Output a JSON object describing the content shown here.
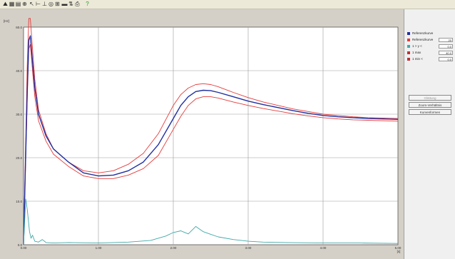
{
  "toolbar": {
    "icons": [
      {
        "name": "chart-icon",
        "glyph": "⛰"
      },
      {
        "name": "grid-icon",
        "glyph": "▦"
      },
      {
        "name": "table-icon",
        "glyph": "▤"
      },
      {
        "name": "zoom-icon",
        "glyph": "⊕"
      },
      {
        "name": "cursor-icon",
        "glyph": "↖"
      },
      {
        "name": "axis-x-icon",
        "glyph": "⊢"
      },
      {
        "name": "axis-y-icon",
        "glyph": "⊥"
      },
      {
        "name": "marker-icon",
        "glyph": "◎"
      },
      {
        "name": "scale-icon",
        "glyph": "⊞"
      },
      {
        "name": "save-icon",
        "glyph": "▬"
      },
      {
        "name": "export-icon",
        "glyph": "⇅"
      },
      {
        "name": "print-icon",
        "glyph": "⎙"
      },
      {
        "name": "help-icon",
        "glyph": "?"
      }
    ]
  },
  "chart_data": {
    "type": "line",
    "unit_label": "[Hz]",
    "yticks": [
      "60.0",
      "40.0",
      "30.0",
      "20.0",
      "10.0",
      "0.0"
    ],
    "xticks": [
      "0.00",
      "1.00",
      "2.00",
      "3.00",
      "4.00",
      "5.00"
    ],
    "x_unit": "[s]",
    "xlim": [
      0,
      5
    ],
    "ylim": [
      0,
      50
    ],
    "grid": true,
    "series": [
      {
        "color": "#1f2fa0",
        "width": 1.4,
        "x": [
          0,
          0.05,
          0.07,
          0.09,
          0.12,
          0.15,
          0.2,
          0.3,
          0.4,
          0.6,
          0.8,
          1.0,
          1.2,
          1.4,
          1.6,
          1.8,
          2.0,
          2.1,
          2.2,
          2.3,
          2.4,
          2.5,
          2.6,
          2.8,
          3.0,
          3.2,
          3.4,
          3.6,
          3.8,
          4.0,
          4.2,
          4.4,
          4.6,
          4.8,
          5.0
        ],
        "y": [
          0,
          36,
          47,
          48,
          42,
          36,
          30,
          25,
          22,
          19,
          16.5,
          15.8,
          16,
          17,
          19,
          23,
          29,
          32,
          34,
          35.2,
          35.5,
          35.4,
          35,
          34,
          33,
          32.2,
          31.5,
          30.8,
          30.2,
          29.7,
          29.4,
          29.2,
          29.0,
          28.9,
          28.8
        ]
      },
      {
        "color": "#e53a3a",
        "width": 0.9,
        "x": [
          0,
          0.05,
          0.07,
          0.09,
          0.12,
          0.15,
          0.2,
          0.3,
          0.4,
          0.6,
          0.8,
          1.0,
          1.2,
          1.4,
          1.6,
          1.8,
          2.0,
          2.1,
          2.2,
          2.3,
          2.4,
          2.5,
          2.6,
          2.8,
          3.0,
          3.2,
          3.4,
          3.6,
          3.8,
          4.0,
          4.2,
          4.4,
          4.6,
          4.8,
          5.0
        ],
        "y": [
          0,
          42,
          52,
          52,
          45,
          38,
          31,
          25.5,
          22,
          19,
          17,
          16.5,
          17,
          18.5,
          21,
          25.5,
          32,
          34.5,
          36,
          36.8,
          37,
          36.8,
          36.3,
          35,
          33.8,
          32.8,
          32,
          31.2,
          30.6,
          30.0,
          29.7,
          29.4,
          29.2,
          29.1,
          29.0
        ]
      },
      {
        "color": "#e53a3a",
        "width": 0.9,
        "x": [
          0,
          0.05,
          0.07,
          0.09,
          0.12,
          0.15,
          0.2,
          0.3,
          0.4,
          0.6,
          0.8,
          1.0,
          1.2,
          1.4,
          1.6,
          1.8,
          2.0,
          2.1,
          2.2,
          2.3,
          2.4,
          2.5,
          2.6,
          2.8,
          3.0,
          3.2,
          3.4,
          3.6,
          3.8,
          4.0,
          4.2,
          4.4,
          4.6,
          4.8,
          5.0
        ],
        "y": [
          0,
          34,
          45,
          46,
          40,
          34,
          28.5,
          23.8,
          20.8,
          18,
          15.8,
          15.2,
          15.2,
          16,
          17.5,
          20.5,
          26.5,
          29.5,
          32,
          33.5,
          34,
          34,
          33.7,
          32.8,
          32,
          31.3,
          30.7,
          30.1,
          29.6,
          29.2,
          28.9,
          28.7,
          28.6,
          28.5,
          28.4
        ]
      },
      {
        "color": "#40a8a8",
        "width": 0.9,
        "x": [
          0,
          0.03,
          0.05,
          0.08,
          0.1,
          0.12,
          0.15,
          0.2,
          0.25,
          0.3,
          0.4,
          0.6,
          1.0,
          1.4,
          1.7,
          1.9,
          2.0,
          2.1,
          2.2,
          2.3,
          2.4,
          2.5,
          2.6,
          2.8,
          3.0,
          3.2,
          3.5,
          4.0,
          4.5,
          5.0
        ],
        "y": [
          0,
          10.5,
          8,
          3,
          1.5,
          2.2,
          0.8,
          0.6,
          1.2,
          0.5,
          0.4,
          0.5,
          0.4,
          0.6,
          1.0,
          2.0,
          2.8,
          3.2,
          2.5,
          4.2,
          3.0,
          2.4,
          1.8,
          1.2,
          0.8,
          0.6,
          0.5,
          0.4,
          0.4,
          0.3
        ]
      }
    ]
  },
  "panel": {
    "legend": [
      {
        "color": "#1f2fa0",
        "label": "Referenzkurve",
        "value": ""
      },
      {
        "color": "#e53a3a",
        "label": "Referenzkurve",
        "value": "20"
      },
      {
        "color": "#40a8a8",
        "label": "1 > y <",
        "value": "0.0"
      },
      {
        "color": "#c03030",
        "label": "1 max",
        "value": "40.0"
      },
      {
        "color": "#c03030",
        "label": "1 min <",
        "value": "0.0"
      }
    ],
    "buttons": [
      {
        "label": "Glättung",
        "disabled": true
      },
      {
        "label": "Zoom-Verhältnis",
        "disabled": false
      },
      {
        "label": "Kurvenformen",
        "disabled": false
      }
    ]
  }
}
